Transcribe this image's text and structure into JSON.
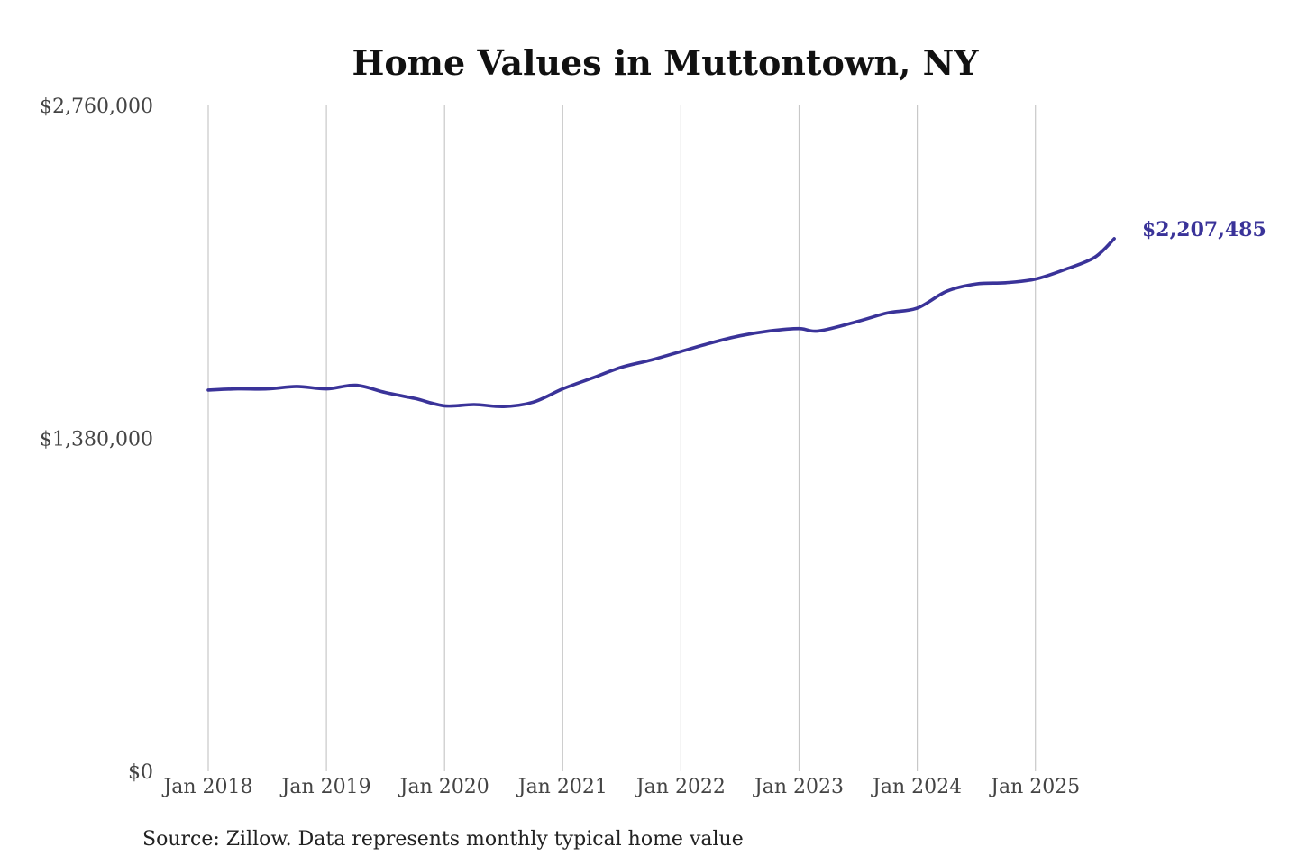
{
  "chart_data": {
    "type": "line",
    "title": "Home Values in Muttontown, NY",
    "xlabel": "",
    "ylabel": "",
    "source": "Source: Zillow. Data represents monthly typical home value",
    "ylim": [
      0,
      2760000
    ],
    "y_ticks": [
      {
        "value": 0,
        "label": "$0"
      },
      {
        "value": 1380000,
        "label": "$1,380,000"
      },
      {
        "value": 2760000,
        "label": "$2,760,000"
      }
    ],
    "x_ticks": [
      {
        "value": "2018-01",
        "label": "Jan 2018"
      },
      {
        "value": "2019-01",
        "label": "Jan 2019"
      },
      {
        "value": "2020-01",
        "label": "Jan 2020"
      },
      {
        "value": "2021-01",
        "label": "Jan 2021"
      },
      {
        "value": "2022-01",
        "label": "Jan 2022"
      },
      {
        "value": "2023-01",
        "label": "Jan 2023"
      },
      {
        "value": "2024-01",
        "label": "Jan 2024"
      },
      {
        "value": "2025-01",
        "label": "Jan 2025"
      }
    ],
    "grid": {
      "vertical": true,
      "horizontal": false
    },
    "line_color": "#3a3399",
    "series": [
      {
        "name": "",
        "x": [
          "2018-01",
          "2018-04",
          "2018-07",
          "2018-10",
          "2019-01",
          "2019-04",
          "2019-07",
          "2019-10",
          "2020-01",
          "2020-04",
          "2020-07",
          "2020-10",
          "2021-01",
          "2021-04",
          "2021-07",
          "2021-10",
          "2022-01",
          "2022-04",
          "2022-07",
          "2022-10",
          "2023-01",
          "2023-03",
          "2023-07",
          "2023-10",
          "2024-01",
          "2024-04",
          "2024-07",
          "2024-10",
          "2025-01",
          "2025-04",
          "2025-07",
          "2025-09"
        ],
        "values": [
          1580000,
          1585000,
          1585000,
          1595000,
          1585000,
          1600000,
          1570000,
          1545000,
          1515000,
          1520000,
          1512000,
          1530000,
          1585000,
          1630000,
          1675000,
          1705000,
          1740000,
          1775000,
          1805000,
          1825000,
          1835000,
          1825000,
          1865000,
          1900000,
          1920000,
          1990000,
          2020000,
          2025000,
          2040000,
          2080000,
          2130000,
          2207485
        ]
      }
    ],
    "end_label": "$2,207,485"
  }
}
